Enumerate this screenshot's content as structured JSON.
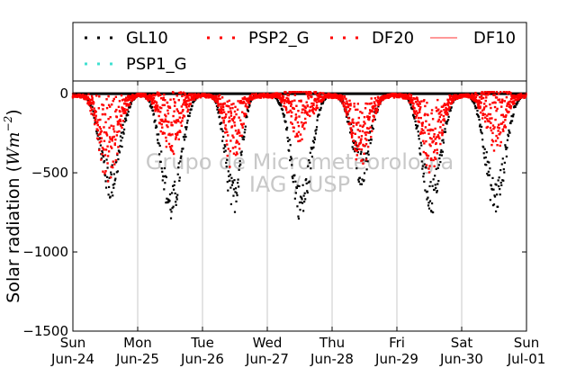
{
  "chart_data": {
    "type": "scatter",
    "title": "",
    "ylabel": "Solar radiation ($Wm^{-2}$)",
    "ylabel_text": "Solar radiation (",
    "ylabel_unit_base": "Wm",
    "ylabel_unit_exp": "−2",
    "ylabel_close": ")",
    "xlabel": "",
    "ylim": [
      -1500,
      80
    ],
    "xlim": [
      0,
      7
    ],
    "yticks": [
      0,
      -500,
      -1000,
      -1500
    ],
    "ytick_labels": [
      "0",
      "−500",
      "−1000",
      "−1500"
    ],
    "xticks": [
      0,
      1,
      2,
      3,
      4,
      5,
      6,
      7
    ],
    "xtick_labels": [
      [
        "Sun",
        "Jun-24"
      ],
      [
        "Mon",
        "Jun-25"
      ],
      [
        "Tue",
        "Jun-26"
      ],
      [
        "Wed",
        "Jun-27"
      ],
      [
        "Thu",
        "Jun-28"
      ],
      [
        "Fri",
        "Jun-29"
      ],
      [
        "Sat",
        "Jun-30"
      ],
      [
        "Sun",
        "Jul-01"
      ]
    ],
    "grid": "vertical",
    "legend_position": "top",
    "watermark": [
      "Grupo de Micrometeorologia",
      "IAG / USP"
    ],
    "zero_line": 0,
    "series": [
      {
        "name": "GL10",
        "marker": "dot",
        "color": "#000000",
        "daily_peak": [
          {
            "day": 0,
            "peak": -560,
            "center": 0.58,
            "width": 0.15
          },
          {
            "day": 1,
            "peak": -700,
            "center": 0.52,
            "width": 0.15
          },
          {
            "day": 2,
            "peak": -650,
            "center": 0.47,
            "width": 0.12
          },
          {
            "day": 3,
            "peak": -690,
            "center": 0.52,
            "width": 0.15
          },
          {
            "day": 4,
            "peak": -460,
            "center": 0.45,
            "width": 0.14
          },
          {
            "day": 5,
            "peak": -650,
            "center": 0.53,
            "width": 0.15
          },
          {
            "day": 6,
            "peak": -650,
            "center": 0.52,
            "width": 0.15
          }
        ]
      },
      {
        "name": "PSP2_G",
        "marker": "dot",
        "color": "#ff0000",
        "daily_peak": [
          {
            "day": 0,
            "peak": -350,
            "center": 0.55,
            "width": 0.15
          },
          {
            "day": 1,
            "peak": -190,
            "center": 0.52,
            "width": 0.15
          },
          {
            "day": 2,
            "peak": -280,
            "center": 0.47,
            "width": 0.12
          },
          {
            "day": 3,
            "peak": -120,
            "center": 0.52,
            "width": 0.15
          },
          {
            "day": 4,
            "peak": -270,
            "center": 0.45,
            "width": 0.14
          },
          {
            "day": 5,
            "peak": -300,
            "center": 0.53,
            "width": 0.15
          },
          {
            "day": 6,
            "peak": -150,
            "center": 0.52,
            "width": 0.15
          }
        ]
      },
      {
        "name": "DF20",
        "marker": "dot",
        "color": "#ff0000",
        "daily_peak": [
          {
            "day": 0,
            "peak": -200,
            "center": 0.55,
            "width": 0.15
          },
          {
            "day": 1,
            "peak": -160,
            "center": 0.52,
            "width": 0.15
          },
          {
            "day": 2,
            "peak": -220,
            "center": 0.47,
            "width": 0.12
          },
          {
            "day": 3,
            "peak": -100,
            "center": 0.52,
            "width": 0.15
          },
          {
            "day": 4,
            "peak": -230,
            "center": 0.45,
            "width": 0.14
          },
          {
            "day": 5,
            "peak": -240,
            "center": 0.53,
            "width": 0.15
          },
          {
            "day": 6,
            "peak": -120,
            "center": 0.52,
            "width": 0.15
          }
        ]
      },
      {
        "name": "DF10",
        "marker": "line",
        "color": "#ff5a5a"
      },
      {
        "name": "PSP1_G",
        "marker": "dot",
        "color": "#40e0d0"
      }
    ]
  }
}
